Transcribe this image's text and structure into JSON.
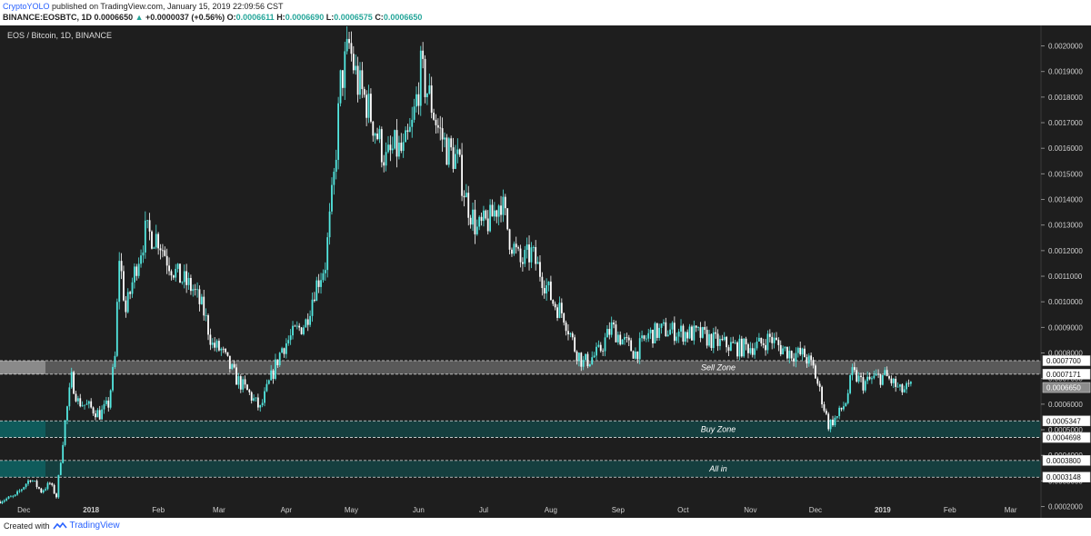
{
  "header": {
    "author": "CryptoYOLO",
    "published_text": "published on TradingView.com, January 15, 2019 22:09:56 CST",
    "symbol_line": "BINANCE:EOSBTC, 1D",
    "last": "0.0006650",
    "change_arrow": "▲",
    "change": "+0.0000037 (+0.56%)",
    "o_label": "O:",
    "o": "0.0006611",
    "h_label": "H:",
    "h": "0.0006690",
    "l_label": "L:",
    "l": "0.0006575",
    "c_label": "C:",
    "c": "0.0006650"
  },
  "footer": {
    "created_with": "Created with",
    "brand": "TradingView"
  },
  "colors": {
    "background": "#1e1e1e",
    "up_candle": "#53e8e1",
    "down_candle": "#ffffff",
    "sell_zone": "#8a8a8a",
    "buy_zone": "#0f5b5b",
    "last_price_tag": "#8c8c8c"
  },
  "chart_data": {
    "type": "candlestick",
    "title": "EOS / Bitcoin, 1D, BINANCE",
    "ylim": [
      0.00017,
      0.00208
    ],
    "y_ticks": [
      "0.0020000",
      "0.0019000",
      "0.0018000",
      "0.0017000",
      "0.0016000",
      "0.0015000",
      "0.0014000",
      "0.0013000",
      "0.0012000",
      "0.0011000",
      "0.0010000",
      "0.0009000",
      "0.0008000",
      "0.0007000",
      "0.0006000",
      "0.0005000",
      "0.0004000",
      "0.0003000",
      "0.0002000"
    ],
    "x_ticks": [
      "Dec",
      "2018",
      "Feb",
      "Mar",
      "Apr",
      "May",
      "Jun",
      "Jul",
      "Aug",
      "Sep",
      "Oct",
      "Nov",
      "Dec",
      "2019",
      "Feb",
      "Mar"
    ],
    "x_tick_dates": [
      "2017-12-01",
      "2018-01-01",
      "2018-02-01",
      "2018-03-01",
      "2018-04-01",
      "2018-05-01",
      "2018-06-01",
      "2018-07-01",
      "2018-08-01",
      "2018-09-01",
      "2018-10-01",
      "2018-11-01",
      "2018-12-01",
      "2019-01-01",
      "2019-02-01",
      "2019-03-01"
    ],
    "x_range": [
      "2017-11-20",
      "2019-03-15"
    ],
    "zones": [
      {
        "label": "Sell Zone",
        "low": 0.0007171,
        "high": 0.00077,
        "low_label": "0.0007171",
        "high_label": "0.0007700",
        "fill": "#8a8a8a"
      },
      {
        "label": "Buy Zone",
        "low": 0.0004698,
        "high": 0.0005347,
        "low_label": "0.0004698",
        "high_label": "0.0005347",
        "fill": "#0f5b5b"
      },
      {
        "label": "All in",
        "low": 0.0003148,
        "high": 0.00038,
        "low_label": "0.0003148",
        "high_label": "0.0003800",
        "fill": "#0f5b5b"
      }
    ],
    "last_price": 0.000665,
    "last_price_label": "0.0006650",
    "price_path": [
      [
        "2017-11-20",
        0.00022
      ],
      [
        "2017-11-28",
        0.00024
      ],
      [
        "2017-12-05",
        0.00031
      ],
      [
        "2017-12-10",
        0.00026
      ],
      [
        "2017-12-14",
        0.00029
      ],
      [
        "2017-12-17",
        0.00024
      ],
      [
        "2017-12-21",
        0.00053
      ],
      [
        "2017-12-24",
        0.0007
      ],
      [
        "2017-12-27",
        0.00061
      ],
      [
        "2018-01-01",
        0.00059
      ],
      [
        "2018-01-06",
        0.00056
      ],
      [
        "2018-01-10",
        0.0006
      ],
      [
        "2018-01-13",
        0.00078
      ],
      [
        "2018-01-15",
        0.00118
      ],
      [
        "2018-01-18",
        0.00096
      ],
      [
        "2018-01-23",
        0.00115
      ],
      [
        "2018-01-27",
        0.00127
      ],
      [
        "2018-02-02",
        0.00125
      ],
      [
        "2018-02-06",
        0.00117
      ],
      [
        "2018-02-11",
        0.0011
      ],
      [
        "2018-02-18",
        0.00105
      ],
      [
        "2018-02-23",
        0.00096
      ],
      [
        "2018-02-27",
        0.00083
      ],
      [
        "2018-03-03",
        0.00081
      ],
      [
        "2018-03-06",
        0.00076
      ],
      [
        "2018-03-10",
        0.0007
      ],
      [
        "2018-03-16",
        0.00064
      ],
      [
        "2018-03-21",
        0.00058
      ],
      [
        "2018-03-25",
        0.00068
      ],
      [
        "2018-03-31",
        0.00082
      ],
      [
        "2018-04-06",
        0.00088
      ],
      [
        "2018-04-11",
        0.00092
      ],
      [
        "2018-04-15",
        0.00105
      ],
      [
        "2018-04-20",
        0.00115
      ],
      [
        "2018-04-24",
        0.00148
      ],
      [
        "2018-04-27",
        0.00185
      ],
      [
        "2018-05-01",
        0.002
      ],
      [
        "2018-05-05",
        0.00185
      ],
      [
        "2018-05-09",
        0.00178
      ],
      [
        "2018-05-14",
        0.00165
      ],
      [
        "2018-05-18",
        0.00155
      ],
      [
        "2018-05-22",
        0.0016
      ],
      [
        "2018-05-26",
        0.00158
      ],
      [
        "2018-05-30",
        0.00168
      ],
      [
        "2018-06-03",
        0.0019
      ],
      [
        "2018-06-07",
        0.0018
      ],
      [
        "2018-06-11",
        0.00168
      ],
      [
        "2018-06-15",
        0.0016
      ],
      [
        "2018-06-20",
        0.00155
      ],
      [
        "2018-06-24",
        0.0014
      ],
      [
        "2018-06-29",
        0.00128
      ],
      [
        "2018-07-05",
        0.00132
      ],
      [
        "2018-07-10",
        0.0014
      ],
      [
        "2018-07-14",
        0.00125
      ],
      [
        "2018-07-19",
        0.00115
      ],
      [
        "2018-07-24",
        0.00119
      ],
      [
        "2018-07-29",
        0.0011
      ],
      [
        "2018-08-03",
        0.001
      ],
      [
        "2018-08-08",
        0.00095
      ],
      [
        "2018-08-13",
        0.00082
      ],
      [
        "2018-08-17",
        0.00076
      ],
      [
        "2018-08-24",
        0.0008
      ],
      [
        "2018-08-30",
        0.0009
      ],
      [
        "2018-09-04",
        0.00085
      ],
      [
        "2018-09-10",
        0.0008
      ],
      [
        "2018-09-16",
        0.00087
      ],
      [
        "2018-09-23",
        0.00089
      ],
      [
        "2018-10-02",
        0.00088
      ],
      [
        "2018-10-10",
        0.00087
      ],
      [
        "2018-10-18",
        0.00084
      ],
      [
        "2018-10-28",
        0.00082
      ],
      [
        "2018-11-06",
        0.00083
      ],
      [
        "2018-11-11",
        0.00086
      ],
      [
        "2018-11-16",
        0.00082
      ],
      [
        "2018-11-21",
        0.0008
      ],
      [
        "2018-11-27",
        0.00079
      ],
      [
        "2018-12-01",
        0.00074
      ],
      [
        "2018-12-05",
        0.00062
      ],
      [
        "2018-12-08",
        0.00052
      ],
      [
        "2018-12-12",
        0.00055
      ],
      [
        "2018-12-16",
        0.00061
      ],
      [
        "2018-12-19",
        0.00072
      ],
      [
        "2018-12-24",
        0.00068
      ],
      [
        "2018-12-29",
        0.0007
      ],
      [
        "2019-01-03",
        0.00071
      ],
      [
        "2019-01-06",
        0.00069
      ],
      [
        "2019-01-10",
        0.00065
      ],
      [
        "2019-01-15",
        0.000665
      ]
    ]
  }
}
